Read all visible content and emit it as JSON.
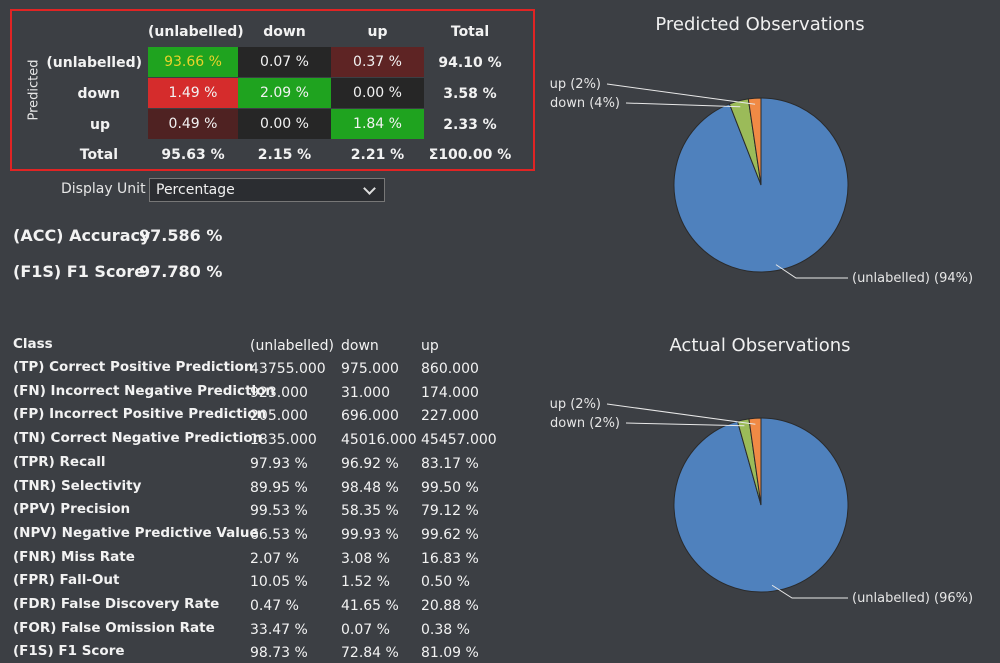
{
  "confusion": {
    "axis_label": "Predicted",
    "columns": [
      "(unlabelled)",
      "down",
      "up",
      "Total"
    ],
    "rows": [
      {
        "label": "(unlabelled)",
        "cells": [
          "93.66 %",
          "0.07 %",
          "0.37 %"
        ],
        "total": "94.10 %"
      },
      {
        "label": "down",
        "cells": [
          "1.49 %",
          "2.09 %",
          "0.00 %"
        ],
        "total": "3.58 %"
      },
      {
        "label": "up",
        "cells": [
          "0.49 %",
          "0.00 %",
          "1.84 %"
        ],
        "total": "2.33 %"
      }
    ],
    "total_label": "Total",
    "col_totals": [
      "95.63 %",
      "2.15 %",
      "2.21 %"
    ],
    "grand_total": "Σ100.00 %",
    "cell_colors": [
      [
        "#1fa31f",
        "#262626",
        "#5e2424"
      ],
      [
        "#d52c2c",
        "#1fa31f",
        "#262626"
      ],
      [
        "#4f2222",
        "#262626",
        "#1fa31f"
      ]
    ],
    "diag_first_text_color": "#e8d32a"
  },
  "display_unit": {
    "label": "Display Unit",
    "value": "Percentage"
  },
  "metrics": {
    "acc_label": "(ACC) Accuracy",
    "acc_value": "97.586 %",
    "f1_label": "(F1S) F1 Score",
    "f1_value": "97.780 %"
  },
  "stats": {
    "header": "Class",
    "classes": [
      "(unlabelled)",
      "down",
      "up"
    ],
    "rows": [
      {
        "label": "(TP) Correct Positive Prediction",
        "values": [
          "43755.000",
          "975.000",
          "860.000"
        ]
      },
      {
        "label": "(FN) Incorrect Negative Prediction",
        "values": [
          "923.000",
          "31.000",
          "174.000"
        ]
      },
      {
        "label": "(FP) Incorrect Positive Prediction",
        "values": [
          "205.000",
          "696.000",
          "227.000"
        ]
      },
      {
        "label": "(TN) Correct Negative Prediction",
        "values": [
          "1835.000",
          "45016.000",
          "45457.000"
        ]
      },
      {
        "label": "(TPR) Recall",
        "values": [
          "97.93 %",
          "96.92 %",
          "83.17 %"
        ]
      },
      {
        "label": "(TNR) Selectivity",
        "values": [
          "89.95 %",
          "98.48 %",
          "99.50 %"
        ]
      },
      {
        "label": "(PPV) Precision",
        "values": [
          "99.53 %",
          "58.35 %",
          "79.12 %"
        ]
      },
      {
        "label": "(NPV) Negative Predictive Value",
        "values": [
          "66.53 %",
          "99.93 %",
          "99.62 %"
        ]
      },
      {
        "label": "(FNR) Miss Rate",
        "values": [
          "2.07 %",
          "3.08 %",
          "16.83 %"
        ]
      },
      {
        "label": "(FPR) Fall-Out",
        "values": [
          "10.05 %",
          "1.52 %",
          "0.50 %"
        ]
      },
      {
        "label": "(FDR) False Discovery Rate",
        "values": [
          "0.47 %",
          "41.65 %",
          "20.88 %"
        ]
      },
      {
        "label": "(FOR) False Omission Rate",
        "values": [
          "33.47 %",
          "0.07 %",
          "0.38 %"
        ]
      },
      {
        "label": "(F1S) F1 Score",
        "values": [
          "98.73 %",
          "72.84 %",
          "81.09 %"
        ]
      }
    ]
  },
  "chart_data": [
    {
      "type": "pie",
      "title": "Predicted Observations",
      "slices": [
        {
          "label": "(unlabelled) (94%)",
          "value": 94.1,
          "color": "#4f81bd"
        },
        {
          "label": "down (4%)",
          "value": 3.58,
          "color": "#9bbb59"
        },
        {
          "label": "up (2%)",
          "value": 2.33,
          "color": "#f08a45"
        }
      ]
    },
    {
      "type": "pie",
      "title": "Actual Observations",
      "slices": [
        {
          "label": "(unlabelled) (96%)",
          "value": 95.63,
          "color": "#4f81bd"
        },
        {
          "label": "down (2%)",
          "value": 2.15,
          "color": "#9bbb59"
        },
        {
          "label": "up (2%)",
          "value": 2.21,
          "color": "#f08a45"
        }
      ]
    }
  ]
}
